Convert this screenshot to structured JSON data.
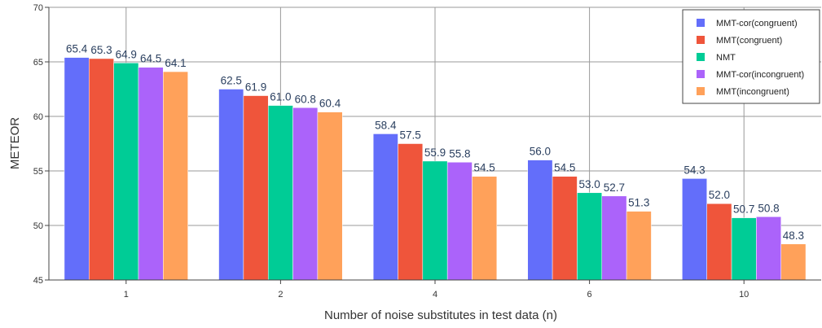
{
  "chart_data": {
    "type": "bar",
    "categories": [
      "1",
      "2",
      "4",
      "6",
      "10"
    ],
    "series": [
      {
        "name": "MMT-cor(congruent)",
        "color": "#636efa",
        "values": [
          65.4,
          62.5,
          58.4,
          56.0,
          54.3
        ],
        "labels": [
          "65.4",
          "62.5",
          "58.4",
          "56.0",
          "54.3"
        ]
      },
      {
        "name": "MMT(congruent)",
        "color": "#ef553b",
        "values": [
          65.3,
          61.9,
          57.5,
          54.5,
          52.0
        ],
        "labels": [
          "65.3",
          "61.9",
          "57.5",
          "54.5",
          "52.0"
        ]
      },
      {
        "name": "NMT",
        "color": "#00cc96",
        "values": [
          64.9,
          61.0,
          55.9,
          53.0,
          50.7
        ],
        "labels": [
          "64.9",
          "61.0",
          "55.9",
          "53.0",
          "50.7"
        ]
      },
      {
        "name": "MMT-cor(incongruent)",
        "color": "#ab63fa",
        "values": [
          64.5,
          60.8,
          55.8,
          52.7,
          50.8
        ],
        "labels": [
          "64.5",
          "60.8",
          "55.8",
          "52.7",
          "50.8"
        ]
      },
      {
        "name": "MMT(incongruent)",
        "color": "#ffa15a",
        "values": [
          64.1,
          60.4,
          54.5,
          51.3,
          48.3
        ],
        "labels": [
          "64.1",
          "60.4",
          "54.5",
          "51.3",
          "48.3"
        ]
      }
    ],
    "xlabel": "Number of noise substitutes in test data (n)",
    "ylabel": "METEOR",
    "ylim": [
      45,
      70
    ],
    "yticks": [
      45,
      50,
      55,
      60,
      65,
      70
    ],
    "grid": true,
    "legend_position": "top-right"
  }
}
